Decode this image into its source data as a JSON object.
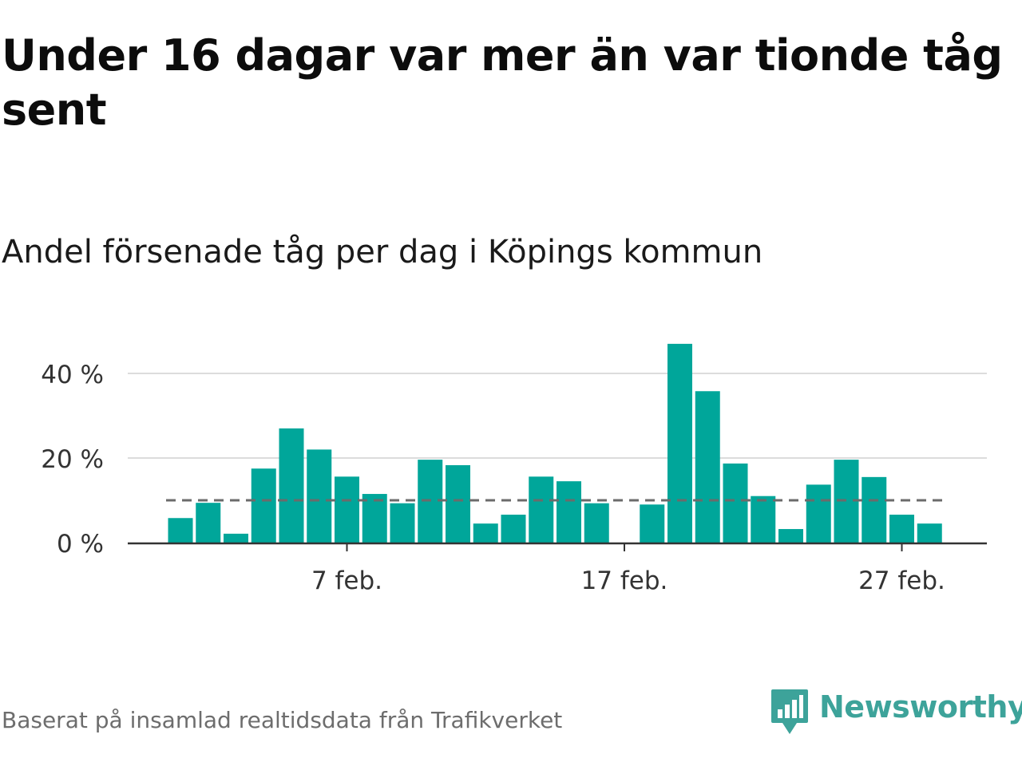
{
  "title": "Under 16 dagar var mer än var tionde tåg sent",
  "subtitle": "Andel försenade tåg per dag i Köpings kommun",
  "source": "Baserat på insamlad realtidsdata från Trafikverket",
  "brand": {
    "name": "Newsworthy",
    "icon": "newsworthy-logo-icon",
    "color": "#3da39a"
  },
  "colors": {
    "bar": "#00a69a",
    "reference_line": "#6b6b6b",
    "grid": "#dcdcdc",
    "axis": "#333333",
    "tick_text": "#333333"
  },
  "chart_data": {
    "type": "bar",
    "x": [
      "2024-02-01",
      "2024-02-02",
      "2024-02-03",
      "2024-02-04",
      "2024-02-05",
      "2024-02-06",
      "2024-02-07",
      "2024-02-08",
      "2024-02-09",
      "2024-02-10",
      "2024-02-11",
      "2024-02-12",
      "2024-02-13",
      "2024-02-14",
      "2024-02-15",
      "2024-02-16",
      "2024-02-17",
      "2024-02-18",
      "2024-02-19",
      "2024-02-20",
      "2024-02-21",
      "2024-02-22",
      "2024-02-23",
      "2024-02-24",
      "2024-02-25",
      "2024-02-26",
      "2024-02-27",
      "2024-02-28"
    ],
    "values": [
      5.8,
      9.4,
      2.1,
      17.5,
      27,
      22,
      15.6,
      11.5,
      9.3,
      19.6,
      18.3,
      4.5,
      6.6,
      15.6,
      14.5,
      9.3,
      0,
      9,
      47,
      35.8,
      18.7,
      11,
      3.2,
      13.7,
      19.6,
      15.5,
      6.6,
      4.5
    ],
    "reference_value": 10,
    "ylim": [
      0,
      48
    ],
    "y_ticks": [
      {
        "value": 0,
        "label": "0 %"
      },
      {
        "value": 20,
        "label": "20 %"
      },
      {
        "value": 40,
        "label": "40 %"
      }
    ],
    "x_ticks": [
      {
        "date": "2024-02-07",
        "label": "7 feb."
      },
      {
        "date": "2024-02-17",
        "label": "17 feb."
      },
      {
        "date": "2024-02-27",
        "label": "27 feb."
      }
    ],
    "grid": true,
    "xlabel": "",
    "ylabel": ""
  }
}
